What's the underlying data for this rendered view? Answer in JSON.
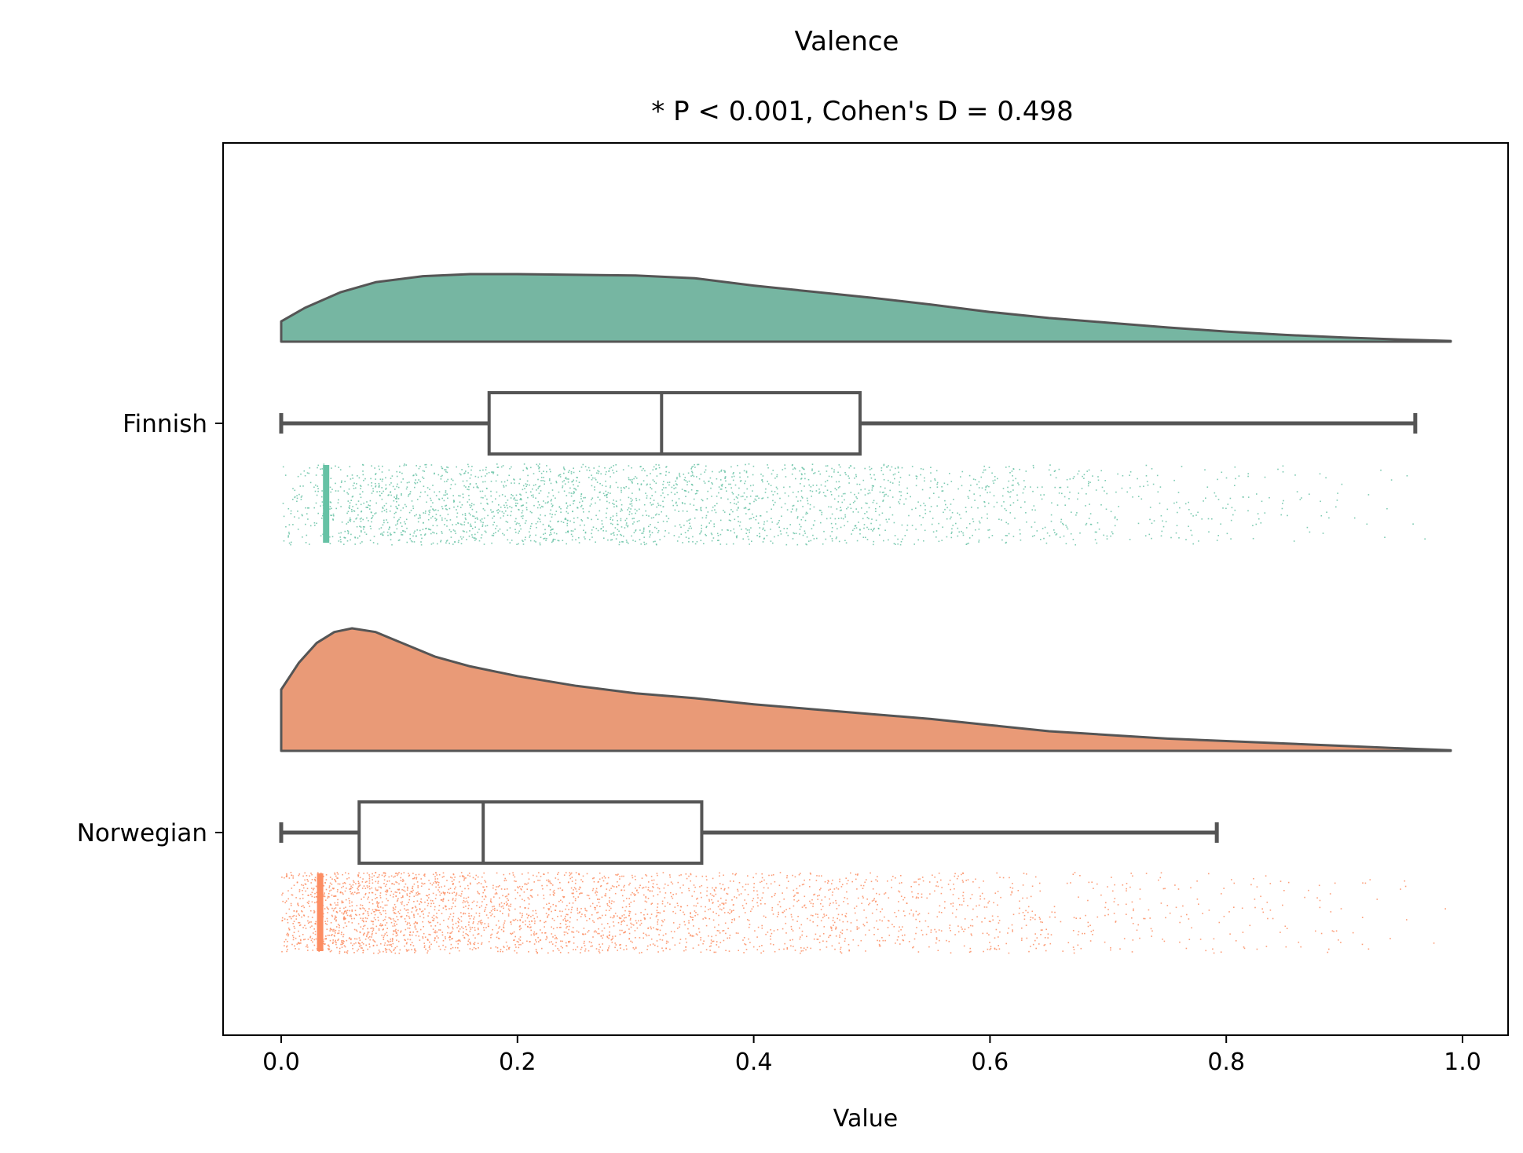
{
  "chart_data": {
    "type": "raincloud",
    "title": "Valence",
    "subtitle": "* P < 0.001, Cohen's D = 0.498",
    "xlabel": "Value",
    "ylabel": "",
    "xlim": [
      -0.05,
      1.045
    ],
    "xticks": [
      0.0,
      0.2,
      0.4,
      0.6,
      0.8,
      1.0
    ],
    "xtick_labels": [
      "0.0",
      "0.2",
      "0.4",
      "0.6",
      "0.8",
      "1.0"
    ],
    "grid": false,
    "legend": "none",
    "categories": [
      "Finnish",
      "Norwegian"
    ],
    "series": [
      {
        "name": "Finnish",
        "color": "#66c2a5",
        "density_color": "#76b6a2",
        "box": {
          "whisker_low": 0.0,
          "q1": 0.176,
          "median": 0.322,
          "q3": 0.49,
          "whisker_high": 0.96
        },
        "density": {
          "x": [
            0.0,
            0.02,
            0.05,
            0.08,
            0.12,
            0.16,
            0.2,
            0.25,
            0.3,
            0.35,
            0.4,
            0.45,
            0.5,
            0.55,
            0.6,
            0.65,
            0.7,
            0.75,
            0.8,
            0.85,
            0.9,
            0.95,
            0.99
          ],
          "y": [
            0.3,
            0.5,
            0.73,
            0.88,
            0.97,
            1.0,
            1.0,
            0.99,
            0.98,
            0.94,
            0.83,
            0.74,
            0.65,
            0.55,
            0.44,
            0.35,
            0.28,
            0.21,
            0.15,
            0.1,
            0.06,
            0.03,
            0.01
          ]
        },
        "points": {
          "x_range": [
            0.0,
            0.99
          ],
          "dense_band": 0.038,
          "sample_count": 2600
        }
      },
      {
        "name": "Norwegian",
        "color": "#fc8d62",
        "density_color": "#e99a77",
        "box": {
          "whisker_low": 0.0,
          "q1": 0.066,
          "median": 0.171,
          "q3": 0.356,
          "whisker_high": 0.792
        },
        "density": {
          "x": [
            0.0,
            0.015,
            0.03,
            0.045,
            0.06,
            0.08,
            0.1,
            0.13,
            0.16,
            0.2,
            0.25,
            0.3,
            0.35,
            0.4,
            0.45,
            0.5,
            0.55,
            0.6,
            0.65,
            0.7,
            0.75,
            0.8,
            0.85,
            0.9,
            0.95,
            0.99
          ],
          "y": [
            0.5,
            0.72,
            0.88,
            0.97,
            1.0,
            0.97,
            0.89,
            0.77,
            0.69,
            0.61,
            0.53,
            0.47,
            0.43,
            0.38,
            0.34,
            0.3,
            0.26,
            0.21,
            0.16,
            0.13,
            0.1,
            0.08,
            0.06,
            0.04,
            0.02,
            0.005
          ]
        },
        "points": {
          "x_range": [
            0.0,
            0.99
          ],
          "dense_band": 0.033,
          "sample_count": 3200
        }
      }
    ]
  }
}
